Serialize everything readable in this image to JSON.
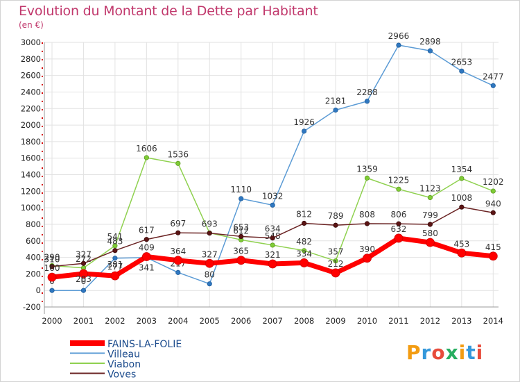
{
  "chart_data": {
    "type": "line",
    "title": "Evolution du Montant de la Dette par Habitant",
    "unit": "(en €)",
    "x": [
      "2000",
      "2001",
      "2002",
      "2003",
      "2004",
      "2005",
      "2006",
      "2007",
      "2008",
      "2009",
      "2010",
      "2011",
      "2012",
      "2013",
      "2014"
    ],
    "ylim": [
      -200,
      3000
    ],
    "yticks": [
      -200,
      0,
      200,
      400,
      600,
      800,
      1000,
      1200,
      1400,
      1600,
      1800,
      2000,
      2200,
      2400,
      2600,
      2800,
      3000
    ],
    "grid": true,
    "legend": "bottom-left",
    "series": [
      {
        "name": "Villeau",
        "color": "#5b9bd5",
        "values": [
          0,
          0,
          390,
          397,
          217,
          80,
          1110,
          1032,
          1926,
          2181,
          2288,
          2966,
          2898,
          2653,
          2477
        ],
        "labels": [
          "0",
          "0",
          "",
          "",
          "217",
          "80",
          "1110",
          "1032",
          "1926",
          "2181",
          "2288",
          "2966",
          "2898",
          "2653",
          "2477"
        ]
      },
      {
        "name": "Viabon",
        "color": "#8fd14f",
        "values": [
          300,
          272,
          541,
          1606,
          1536,
          695,
          612,
          548,
          482,
          357,
          1359,
          1225,
          1123,
          1354,
          1202
        ],
        "labels": [
          "",
          "272",
          "541",
          "1606",
          "1536",
          "",
          "612",
          "548",
          "482",
          "357",
          "1359",
          "1225",
          "1123",
          "1354",
          "1202"
        ]
      },
      {
        "name": "Voves",
        "color": "#6b2424",
        "values": [
          290,
          327,
          483,
          617,
          697,
          693,
          653,
          634,
          812,
          789,
          808,
          806,
          799,
          1008,
          940
        ],
        "labels": [
          "290",
          "327",
          "483",
          "617",
          "697",
          "693",
          "653",
          "634",
          "812",
          "789",
          "808",
          "806",
          "799",
          "1008",
          "940"
        ]
      },
      {
        "name": "FAINS-LA-FOLIE",
        "color": "#ff0000",
        "values": [
          160,
          203,
          177,
          409,
          364,
          327,
          365,
          321,
          334,
          212,
          390,
          632,
          580,
          453,
          415
        ],
        "labels": [
          "160",
          "",
          "177",
          "409",
          "364",
          "327",
          "365",
          "321",
          "334",
          "212",
          "390",
          "632",
          "580",
          "453",
          "415"
        ]
      }
    ],
    "extra_labels": [
      "310",
      "203",
      "381",
      "341"
    ]
  },
  "logo": {
    "letters": [
      "P",
      "r",
      "o",
      "x",
      "i",
      "t",
      "i"
    ],
    "colors": [
      "#f39c12",
      "#3498db",
      "#e74c3c",
      "#27ae60",
      "#f39c12",
      "#3498db",
      "#e74c3c"
    ]
  }
}
